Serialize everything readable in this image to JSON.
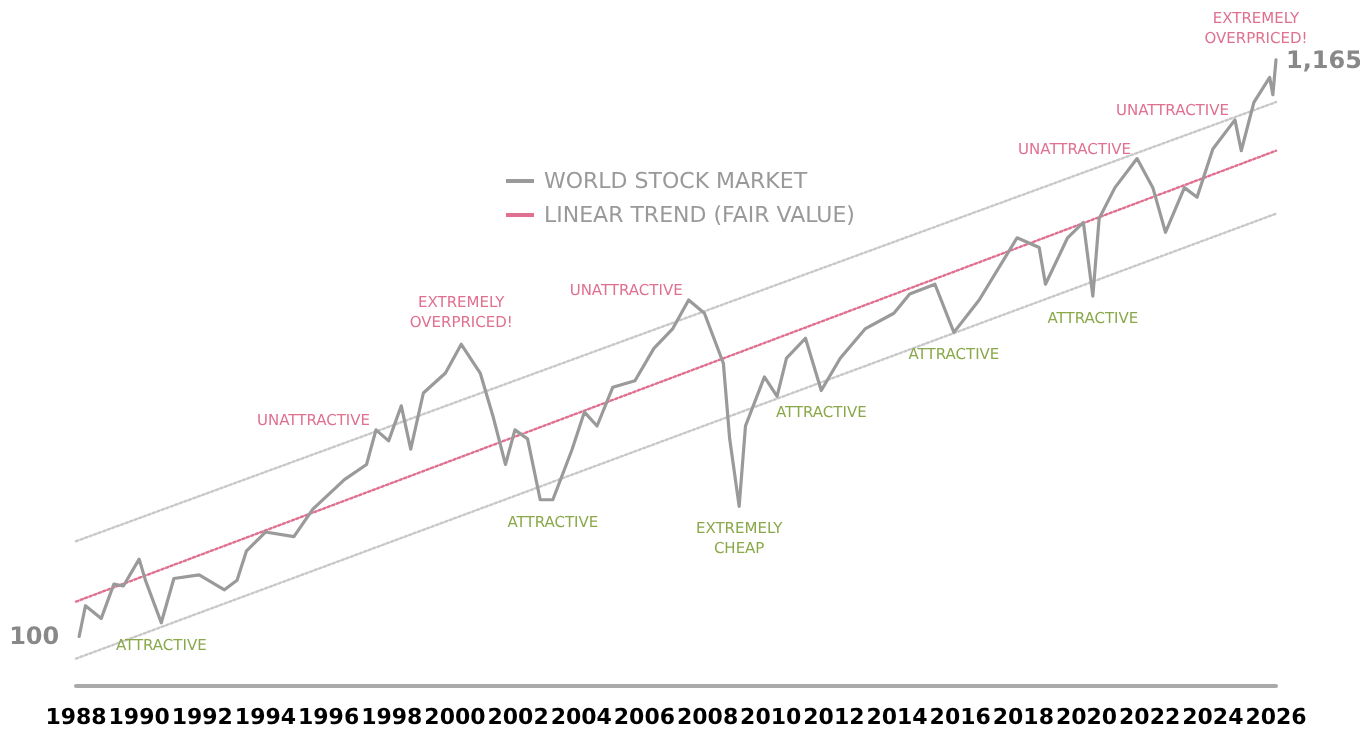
{
  "chart_data": {
    "type": "line",
    "log": true,
    "tick_labels": "x",
    "legend": "top",
    "xlim": [
      1988,
      2026
    ],
    "xticks": [
      1988,
      1990,
      1992,
      1994,
      1996,
      1998,
      2000,
      2002,
      2004,
      2006,
      2008,
      2010,
      2012,
      2014,
      2016,
      2018,
      2020,
      2022,
      2024,
      2026
    ],
    "series": [
      {
        "name": "WORLD STOCK MARKET",
        "color": "#9a9a9a",
        "line_style": "solid",
        "x": [
          1988.1,
          1988.3,
          1988.8,
          1989.2,
          1989.5,
          1990.0,
          1990.2,
          1990.7,
          1991.1,
          1991.9,
          1992.7,
          1993.1,
          1993.4,
          1994.0,
          1994.9,
          1995.5,
          1996.5,
          1997.2,
          1997.5,
          1997.9,
          1998.3,
          1998.6,
          1999.0,
          1999.7,
          2000.2,
          2000.8,
          2001.2,
          2001.6,
          2001.9,
          2002.3,
          2002.7,
          2003.1,
          2003.7,
          2004.1,
          2004.5,
          2005.0,
          2005.7,
          2006.3,
          2006.9,
          2007.4,
          2007.9,
          2008.5,
          2008.7,
          2009.0,
          2009.2,
          2009.8,
          2010.2,
          2010.5,
          2011.1,
          2011.6,
          2012.2,
          2013.0,
          2013.9,
          2014.4,
          2015.2,
          2015.8,
          2016.6,
          2017.8,
          2018.5,
          2018.7,
          2019.4,
          2019.9,
          2020.2,
          2020.4,
          2020.9,
          2021.6,
          2022.1,
          2022.5,
          2023.1,
          2023.5,
          2024.0,
          2024.7,
          2024.9,
          2025.3,
          2025.8,
          2025.9,
          2026.0
        ],
        "values": [
          100,
          114,
          108,
          125,
          124,
          139,
          127,
          106,
          128,
          130,
          122,
          127,
          144,
          156,
          153,
          172,
          195,
          208,
          241,
          230,
          267,
          222,
          282,
          307,
          347,
          307,
          256,
          208,
          241,
          232,
          179,
          179,
          221,
          260,
          245,
          289,
          297,
          341,
          371,
          419,
          396,
          320,
          232,
          174,
          245,
          302,
          278,
          327,
          356,
          285,
          327,
          371,
          396,
          430,
          448,
          365,
          419,
          546,
          524,
          448,
          546,
          583,
          426,
          593,
          676,
          765,
          676,
          559,
          676,
          649,
          797,
          902,
          791,
          972,
          1081,
          1004,
          1165
        ],
        "value_labels": [
          "100",
          null,
          null,
          null,
          null,
          null,
          null,
          null,
          null,
          null,
          null,
          null,
          null,
          null,
          null,
          null,
          null,
          null,
          null,
          null,
          null,
          null,
          null,
          null,
          null,
          null,
          null,
          null,
          null,
          null,
          null,
          null,
          null,
          null,
          null,
          null,
          null,
          null,
          null,
          null,
          null,
          null,
          null,
          null,
          null,
          null,
          null,
          null,
          null,
          null,
          null,
          null,
          null,
          null,
          null,
          null,
          null,
          null,
          null,
          null,
          null,
          null,
          null,
          null,
          null,
          null,
          null,
          null,
          null,
          null,
          null,
          null,
          null,
          null,
          null,
          null,
          "1,165"
        ]
      },
      {
        "name": "LINEAR TREND (FAIR VALUE)",
        "color": "#e07090",
        "line_style": "dotted",
        "x": [
          1988,
          2026
        ],
        "values": [
          116,
          791
        ]
      },
      {
        "color": "#c8c8c8",
        "line_style": "dotted",
        "x": [
          1988,
          2026
        ],
        "values": [
          150,
          973
        ]
      },
      {
        "color": "#c8c8c8",
        "line_style": "dotted",
        "x": [
          1988,
          2026
        ],
        "values": [
          91,
          605
        ]
      }
    ],
    "annotations": [
      {
        "text": "EXTREMELY\nOVERPRICED!",
        "x": 2000.2,
        "y": 347
      },
      {
        "text": "UNATTRACTIVE",
        "x": 1997.5,
        "y": 241
      },
      {
        "text": "ATTRACTIVE",
        "x": 1990.7,
        "y": 106
      },
      {
        "text": "ATTRACTIVE",
        "x": 2003.1,
        "y": 179
      },
      {
        "text": "UNATTRACTIVE",
        "x": 2007.4,
        "y": 419
      },
      {
        "text": "EXTREMELY\nCHEAP",
        "x": 2009.0,
        "y": 174
      },
      {
        "text": "ATTRACTIVE",
        "x": 2011.6,
        "y": 285
      },
      {
        "text": "ATTRACTIVE",
        "x": 2015.8,
        "y": 365
      },
      {
        "text": "ATTRACTIVE",
        "x": 2020.2,
        "y": 426
      },
      {
        "text": "UNATTRACTIVE",
        "x": 2021.6,
        "y": 765
      },
      {
        "text": "UNATTRACTIVE",
        "x": 2024.7,
        "y": 902
      },
      {
        "text": "EXTREMELY\nOVERPRICED!",
        "x": 2026.0,
        "y": 1165
      }
    ]
  }
}
